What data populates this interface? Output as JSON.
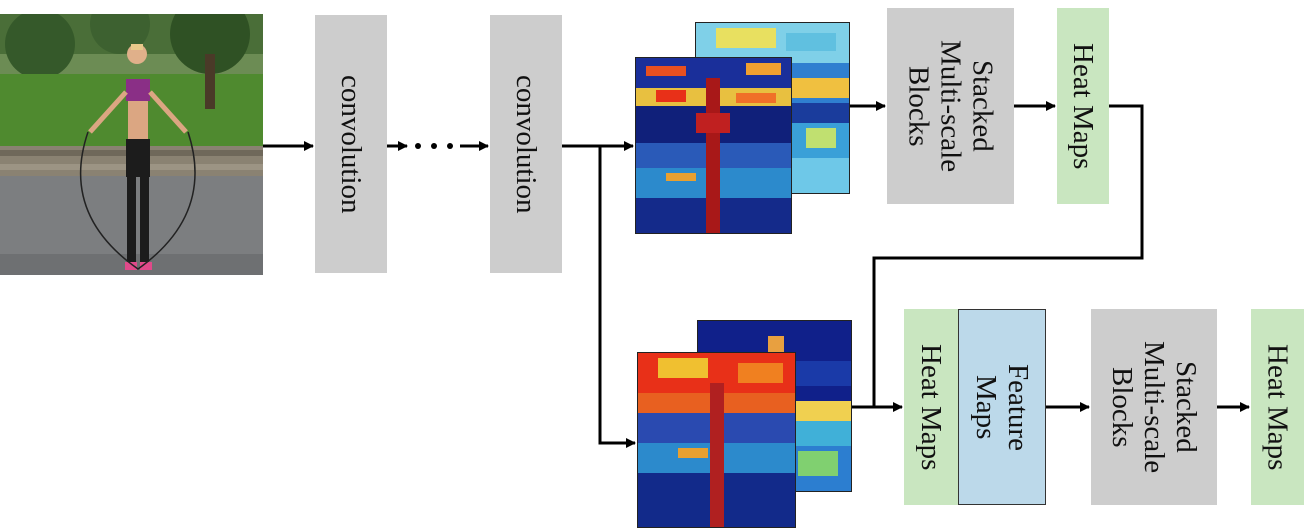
{
  "blocks": {
    "conv1": "convolution",
    "conv2": "convolution",
    "stack1_line1": "Stacked",
    "stack1_line2": "Multi-scale",
    "stack1_line3": "Blocks",
    "heat1": "Heat Maps",
    "heat2": "Heat Maps",
    "feature_line1": "Feature",
    "feature_line2": "Maps",
    "stack2_line1": "Stacked",
    "stack2_line2": "Multi-scale",
    "stack2_line3": "Blocks",
    "heat3": "Heat Maps"
  },
  "colors": {
    "gray_block": "#cdcdcd",
    "heat_block": "#c9e6c0",
    "feature_block": "#bcd9ea",
    "arrow": "#000000"
  },
  "icons": {
    "input": "person-jumping-rope-photo",
    "features_top": "feature-map-heat-image",
    "features_bottom": "feature-map-heat-image"
  }
}
